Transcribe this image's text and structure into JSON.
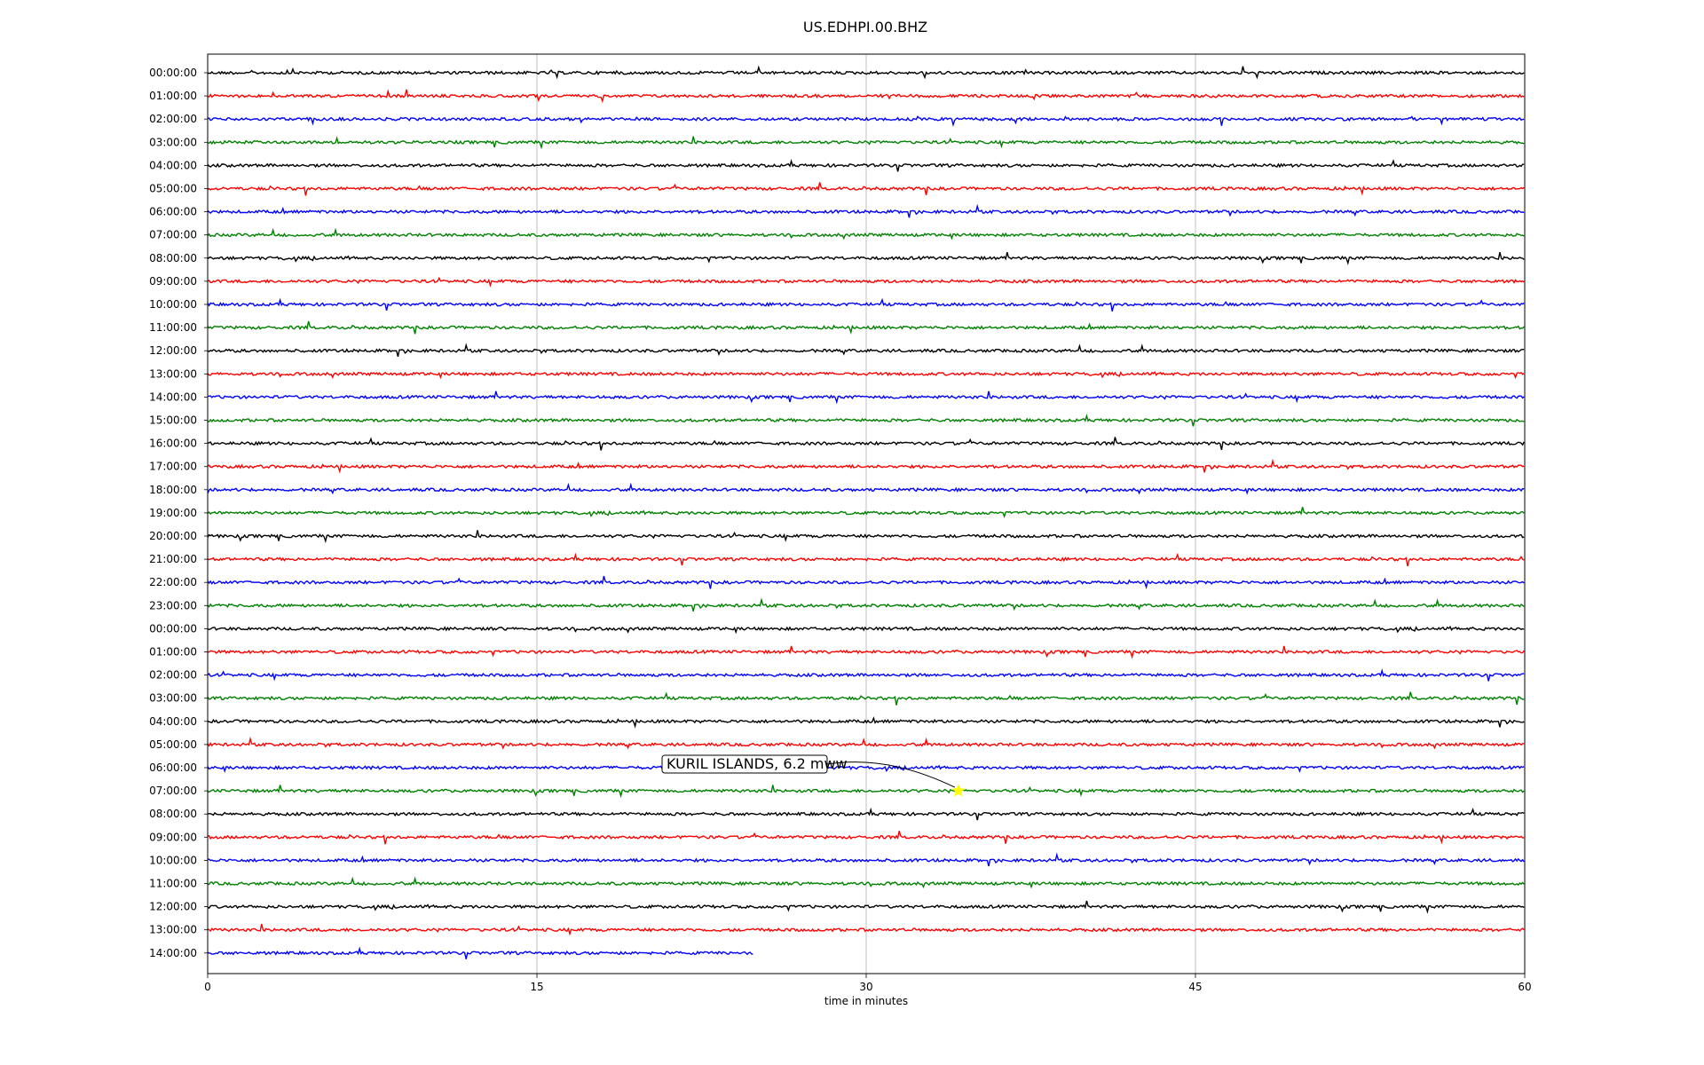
{
  "chart_data": {
    "type": "line",
    "title": "US.EDHPI.00.BHZ",
    "xlabel": "time in minutes",
    "ylabel": "",
    "xlim": [
      0,
      60
    ],
    "x_ticks": [
      0,
      15,
      30,
      45,
      60
    ],
    "x_tick_labels": [
      "0",
      "15",
      "30",
      "45",
      "60"
    ],
    "grid": "vertical lines at x ticks",
    "trace_colors": [
      "#000000",
      "#ff0000",
      "#0000ff",
      "#008000"
    ],
    "last_trace_end_minute": 24.9,
    "rows": [
      {
        "label": "00:00:00",
        "color": "#000000"
      },
      {
        "label": "01:00:00",
        "color": "#ff0000"
      },
      {
        "label": "02:00:00",
        "color": "#0000ff"
      },
      {
        "label": "03:00:00",
        "color": "#008000"
      },
      {
        "label": "04:00:00",
        "color": "#000000"
      },
      {
        "label": "05:00:00",
        "color": "#ff0000"
      },
      {
        "label": "06:00:00",
        "color": "#0000ff"
      },
      {
        "label": "07:00:00",
        "color": "#008000"
      },
      {
        "label": "08:00:00",
        "color": "#000000"
      },
      {
        "label": "09:00:00",
        "color": "#ff0000"
      },
      {
        "label": "10:00:00",
        "color": "#0000ff"
      },
      {
        "label": "11:00:00",
        "color": "#008000"
      },
      {
        "label": "12:00:00",
        "color": "#000000"
      },
      {
        "label": "13:00:00",
        "color": "#ff0000"
      },
      {
        "label": "14:00:00",
        "color": "#0000ff"
      },
      {
        "label": "15:00:00",
        "color": "#008000"
      },
      {
        "label": "16:00:00",
        "color": "#000000"
      },
      {
        "label": "17:00:00",
        "color": "#ff0000"
      },
      {
        "label": "18:00:00",
        "color": "#0000ff"
      },
      {
        "label": "19:00:00",
        "color": "#008000"
      },
      {
        "label": "20:00:00",
        "color": "#000000"
      },
      {
        "label": "21:00:00",
        "color": "#ff0000"
      },
      {
        "label": "22:00:00",
        "color": "#0000ff"
      },
      {
        "label": "23:00:00",
        "color": "#008000"
      },
      {
        "label": "00:00:00",
        "color": "#000000"
      },
      {
        "label": "01:00:00",
        "color": "#ff0000"
      },
      {
        "label": "02:00:00",
        "color": "#0000ff"
      },
      {
        "label": "03:00:00",
        "color": "#008000"
      },
      {
        "label": "04:00:00",
        "color": "#000000"
      },
      {
        "label": "05:00:00",
        "color": "#ff0000"
      },
      {
        "label": "06:00:00",
        "color": "#0000ff"
      },
      {
        "label": "07:00:00",
        "color": "#008000"
      },
      {
        "label": "08:00:00",
        "color": "#000000"
      },
      {
        "label": "09:00:00",
        "color": "#ff0000"
      },
      {
        "label": "10:00:00",
        "color": "#0000ff"
      },
      {
        "label": "11:00:00",
        "color": "#008000"
      },
      {
        "label": "12:00:00",
        "color": "#000000"
      },
      {
        "label": "13:00:00",
        "color": "#ff0000"
      },
      {
        "label": "14:00:00",
        "color": "#0000ff"
      }
    ],
    "event": {
      "label": "KURIL ISLANDS, 6.2 mww",
      "row_index": 31,
      "minute": 34.2,
      "marker": "star",
      "marker_color": "#ffff00"
    }
  }
}
